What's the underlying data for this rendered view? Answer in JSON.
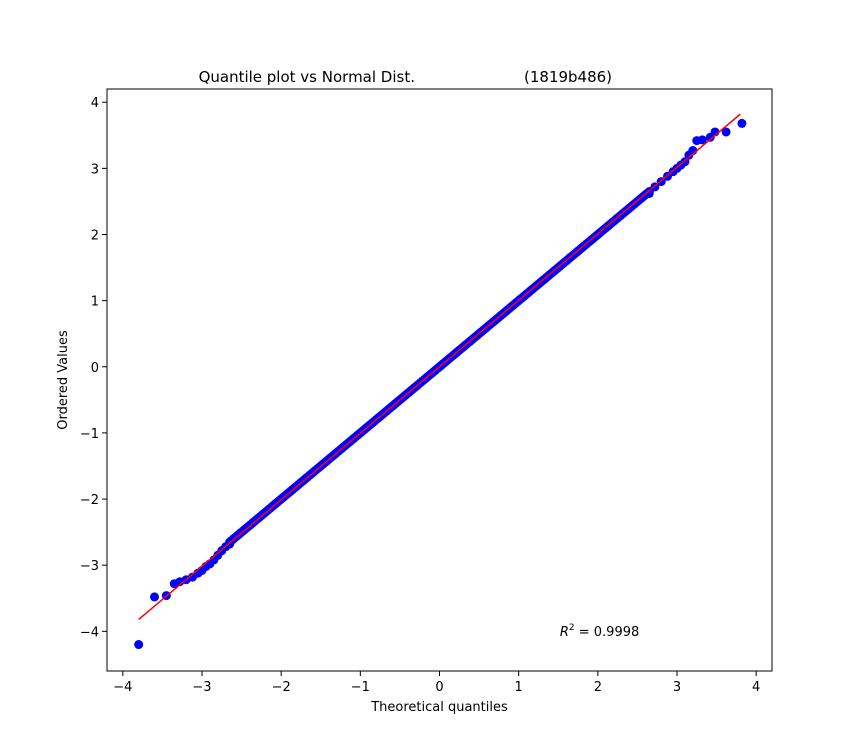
{
  "chart_data": {
    "type": "scatter",
    "title": "Quantile plot vs Normal Dist.",
    "subtitle": "(1819b486)",
    "xlabel": "Theoretical quantiles",
    "ylabel": "Ordered Values",
    "xlim": [
      -4.2,
      4.2
    ],
    "ylim": [
      -4.6,
      4.2
    ],
    "xticks": [
      -4,
      -3,
      -2,
      -1,
      0,
      1,
      2,
      3,
      4
    ],
    "yticks": [
      -4,
      -3,
      -2,
      -1,
      0,
      1,
      2,
      3,
      4
    ],
    "grid": false,
    "annotation": {
      "prefix": "R",
      "exponent": "2",
      "text": " = 0.9998",
      "x": 1.52,
      "y": -4.07
    },
    "fit_line": {
      "color": "#ff0000",
      "x": [
        -3.8,
        3.8
      ],
      "y": [
        -3.82,
        3.82
      ]
    },
    "point_color": "#0000ff",
    "points": [
      {
        "x": -3.8,
        "y": -4.2
      },
      {
        "x": -3.6,
        "y": -3.48
      },
      {
        "x": -3.45,
        "y": -3.46
      },
      {
        "x": -3.35,
        "y": -3.28
      },
      {
        "x": -3.28,
        "y": -3.25
      },
      {
        "x": -3.2,
        "y": -3.22
      },
      {
        "x": -3.12,
        "y": -3.18
      },
      {
        "x": -3.05,
        "y": -3.12
      },
      {
        "x": -3.0,
        "y": -3.08
      },
      {
        "x": -2.95,
        "y": -3.02
      },
      {
        "x": -2.9,
        "y": -2.98
      },
      {
        "x": -2.85,
        "y": -2.92
      },
      {
        "x": -2.8,
        "y": -2.85
      },
      {
        "x": -2.75,
        "y": -2.78
      },
      {
        "x": -2.7,
        "y": -2.72
      },
      {
        "x": -2.65,
        "y": -2.68
      },
      {
        "x": 2.65,
        "y": 2.62
      },
      {
        "x": 2.72,
        "y": 2.72
      },
      {
        "x": 2.8,
        "y": 2.8
      },
      {
        "x": 2.88,
        "y": 2.88
      },
      {
        "x": 2.95,
        "y": 2.95
      },
      {
        "x": 3.0,
        "y": 3.0
      },
      {
        "x": 3.05,
        "y": 3.05
      },
      {
        "x": 3.1,
        "y": 3.1
      },
      {
        "x": 3.15,
        "y": 3.2
      },
      {
        "x": 3.2,
        "y": 3.27
      },
      {
        "x": 3.25,
        "y": 3.42
      },
      {
        "x": 3.32,
        "y": 3.43
      },
      {
        "x": 3.42,
        "y": 3.47
      },
      {
        "x": 3.48,
        "y": 3.55
      },
      {
        "x": 3.62,
        "y": 3.55
      },
      {
        "x": 3.82,
        "y": 3.68
      }
    ],
    "dense_band": {
      "x_from": -2.65,
      "x_to": 2.65,
      "count": 220
    }
  }
}
